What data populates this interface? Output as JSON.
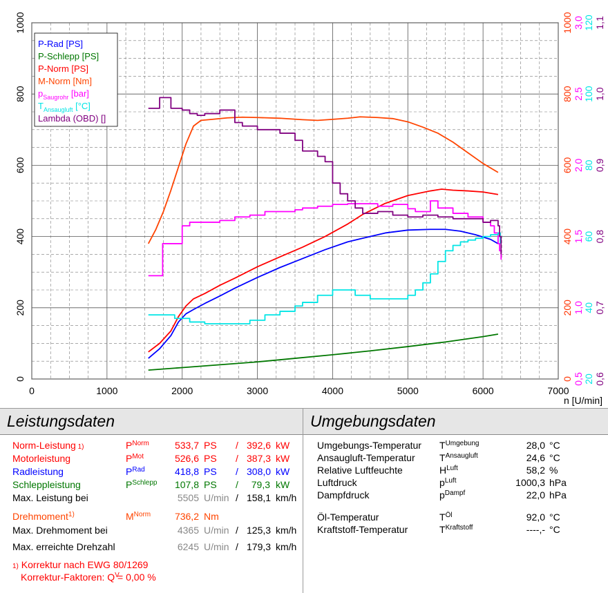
{
  "chart_data": {
    "type": "line",
    "xlabel": "n [U/min]",
    "xlim": [
      0,
      7000
    ],
    "x_ticks": [
      "0",
      "1000",
      "2000",
      "3000",
      "4000",
      "5000",
      "6000",
      "7000"
    ],
    "left_axis": {
      "ylim": [
        0,
        1000
      ],
      "ticks": [
        "0",
        "200",
        "400",
        "600",
        "800",
        "1000"
      ]
    },
    "right_axes": [
      {
        "color": "#ff3300",
        "ticks": [
          "0",
          "200",
          "400",
          "600",
          "800",
          "1000"
        ]
      },
      {
        "color": "#ff00ff",
        "ticks": [
          "0,5",
          "1,0",
          "1,5",
          "2,0",
          "2,5",
          "3,0"
        ]
      },
      {
        "color": "#00e5e5",
        "ticks": [
          "20",
          "40",
          "60",
          "80",
          "100",
          "120"
        ]
      },
      {
        "color": "#800080",
        "ticks": [
          "0,6",
          "0,7",
          "0,8",
          "0,9",
          "1,0",
          "1,1"
        ]
      }
    ],
    "grid": true,
    "legend_position": "top-left",
    "legend": [
      {
        "label": "P-Rad [PS]",
        "color": "#0000ff"
      },
      {
        "label": "P-Schlepp [PS]",
        "color": "#007700"
      },
      {
        "label": "P-Norm [PS]",
        "color": "#ff0000"
      },
      {
        "label": "M-Norm [Nm]",
        "color": "#ff4400"
      },
      {
        "label_main": "p",
        "label_sub": "Saugrohr",
        "label_tail": " [bar]",
        "color": "#ff00ff"
      },
      {
        "label_main": "T",
        "label_sub": "Ansaugluft",
        "label_tail": " [°C]",
        "color": "#00e5e5"
      },
      {
        "label": "Lambda (OBD) []",
        "color": "#800080"
      }
    ],
    "series": [
      {
        "key": "p_rad",
        "color": "#0000ff",
        "x": [
          1550,
          1700,
          1850,
          1950,
          2050,
          2150,
          2300,
          2500,
          2700,
          3000,
          3300,
          3600,
          3900,
          4200,
          4400,
          4700,
          5000,
          5300,
          5500,
          5700,
          5900,
          6100,
          6200
        ],
        "y": [
          58,
          85,
          122,
          160,
          183,
          195,
          212,
          233,
          255,
          285,
          313,
          338,
          363,
          385,
          395,
          410,
          418,
          420,
          420,
          415,
          405,
          392,
          380
        ]
      },
      {
        "key": "p_schlepp",
        "color": "#007700",
        "x": [
          1550,
          2000,
          2500,
          3000,
          3500,
          4000,
          4500,
          5000,
          5500,
          6000,
          6200
        ],
        "y": [
          25,
          32,
          40,
          48,
          58,
          68,
          79,
          91,
          104,
          119,
          126
        ]
      },
      {
        "key": "p_norm",
        "color": "#ff0000",
        "x": [
          1550,
          1700,
          1850,
          1950,
          2050,
          2150,
          2300,
          2500,
          2700,
          3000,
          3300,
          3600,
          3900,
          4200,
          4400,
          4700,
          5000,
          5300,
          5450,
          5600,
          5800,
          6000,
          6200
        ],
        "y": [
          76,
          100,
          135,
          175,
          205,
          225,
          240,
          263,
          283,
          315,
          343,
          370,
          400,
          435,
          462,
          493,
          515,
          528,
          533,
          530,
          528,
          525,
          518
        ]
      },
      {
        "key": "m_norm",
        "color": "#ff4400",
        "x": [
          1550,
          1650,
          1750,
          1850,
          1950,
          2050,
          2150,
          2250,
          2400,
          2600,
          2800,
          3000,
          3300,
          3600,
          3800,
          4000,
          4200,
          4365,
          4600,
          4800,
          5000,
          5200,
          5400,
          5600,
          5800,
          6000,
          6200
        ],
        "y": [
          380,
          420,
          470,
          530,
          595,
          660,
          710,
          726,
          729,
          733,
          735,
          734,
          732,
          728,
          726,
          729,
          732,
          736,
          734,
          731,
          722,
          707,
          690,
          665,
          635,
          605,
          580
        ]
      },
      {
        "key": "p_saugrohr",
        "color": "#ff00ff",
        "step": true,
        "x": [
          1550,
          1700,
          1740,
          2000,
          2100,
          2500,
          2700,
          2900,
          3100,
          3500,
          3600,
          3800,
          4000,
          4200,
          4600,
          4800,
          5000,
          5100,
          5300,
          5400,
          5600,
          5800,
          6000,
          6100,
          6150,
          6200,
          6220,
          6240
        ],
        "y": [
          290,
          290,
          380,
          430,
          440,
          445,
          455,
          460,
          470,
          475,
          480,
          485,
          490,
          492,
          485,
          490,
          478,
          470,
          500,
          480,
          465,
          455,
          440,
          430,
          410,
          380,
          360,
          335
        ]
      },
      {
        "key": "t_ansaug",
        "color": "#00e5e5",
        "step": true,
        "x": [
          1550,
          1700,
          1900,
          2100,
          2300,
          2700,
          2900,
          3100,
          3300,
          3500,
          3600,
          3800,
          4000,
          4200,
          4300,
          4500,
          4600,
          4800,
          5000,
          5100,
          5200,
          5300,
          5400,
          5500,
          5600,
          5700,
          5800,
          5900,
          6000,
          6100,
          6200,
          6230
        ],
        "y": [
          180,
          180,
          170,
          160,
          155,
          155,
          165,
          180,
          190,
          205,
          215,
          235,
          250,
          250,
          235,
          225,
          225,
          225,
          235,
          250,
          270,
          295,
          330,
          360,
          375,
          385,
          390,
          395,
          400,
          405,
          410,
          380
        ]
      },
      {
        "key": "lambda",
        "color": "#800080",
        "step": true,
        "x": [
          1550,
          1700,
          1850,
          2000,
          2100,
          2200,
          2300,
          2500,
          2700,
          2800,
          3000,
          3300,
          3500,
          3600,
          3800,
          3900,
          4000,
          4100,
          4200,
          4300,
          4400,
          4600,
          4800,
          5000,
          5200,
          5400,
          5600,
          5800,
          6000,
          6100,
          6200,
          6220,
          6240
        ],
        "y": [
          760,
          790,
          760,
          755,
          745,
          740,
          745,
          755,
          720,
          710,
          700,
          690,
          670,
          640,
          625,
          610,
          550,
          520,
          500,
          480,
          465,
          470,
          460,
          455,
          460,
          455,
          450,
          450,
          440,
          445,
          430,
          400,
          350
        ]
      }
    ]
  },
  "leistung": {
    "title": "Leistungsdaten",
    "rows": [
      {
        "label": "Norm-Leistung",
        "note": "1)",
        "sym": "P",
        "sub": "Norm",
        "v1": "533,7",
        "u1": "PS",
        "sep": "/",
        "v2": "392,6",
        "u2": "kW",
        "color": "#ff0000"
      },
      {
        "label": "Motorleistung",
        "sym": "P",
        "sub": "Mot",
        "v1": "526,6",
        "u1": "PS",
        "sep": "/",
        "v2": "387,3",
        "u2": "kW",
        "color": "#ff0000"
      },
      {
        "label": "Radleistung",
        "sym": "P",
        "sub": "Rad",
        "v1": "418,8",
        "u1": "PS",
        "sep": "/",
        "v2": "308,0",
        "u2": "kW",
        "color": "#0000ff"
      },
      {
        "label": "Schleppleistung",
        "sym": "P",
        "sub": "Schlepp",
        "v1": "107,8",
        "u1": "PS",
        "sep": "/",
        "v2": "79,3",
        "u2": "kW",
        "color": "#007700"
      },
      {
        "label": "Max. Leistung bei",
        "v1": "5505",
        "u1": "U/min",
        "sep": "/",
        "v2": "158,1",
        "u2": "km/h",
        "color": "#000000"
      }
    ],
    "torque": {
      "label": "Drehmoment",
      "note": "1)",
      "sym": "M",
      "sub": "Norm",
      "v1": "736,2",
      "u1": "Nm",
      "color": "#ff4400"
    },
    "rows2": [
      {
        "label": "Max. Drehmoment bei",
        "v1": "4365",
        "u1": "U/min",
        "sep": "/",
        "v2": "125,3",
        "u2": "km/h"
      },
      {
        "label": "Max. erreichte Drehzahl",
        "v1": "6245",
        "u1": "U/min",
        "sep": "/",
        "v2": "179,3",
        "u2": "km/h"
      }
    ],
    "footnote": {
      "note": "1)",
      "text": "Korrektur nach EWG 80/1269",
      "corr_label": "Korrektur-Faktoren: Q",
      "corr_sub": "V",
      "corr_val": "=   0,00 %"
    }
  },
  "umgebung": {
    "title": "Umgebungsdaten",
    "rows": [
      {
        "label": "Umgebungs-Temperatur",
        "sym": "T",
        "sub": "Umgebung",
        "val": "28,0",
        "unit": "°C"
      },
      {
        "label": "Ansaugluft-Temperatur",
        "sym": "T",
        "sub": "Ansaugluft",
        "val": "24,6",
        "unit": "°C"
      },
      {
        "label": "Relative Luftfeuchte",
        "sym": "H",
        "sub": "Luft",
        "val": "58,2",
        "unit": "%"
      },
      {
        "label": "Luftdruck",
        "sym": "p",
        "sub": "Luft",
        "val": "1000,3",
        "unit": "hPa"
      },
      {
        "label": "Dampfdruck",
        "sym": "p",
        "sub": "Dampf",
        "val": "22,0",
        "unit": "hPa"
      },
      {
        "label": "Öl-Temperatur",
        "sym": "T",
        "sub": "Öl",
        "val": "92,0",
        "unit": "°C"
      },
      {
        "label": "Kraftstoff-Temperatur",
        "sym": "T",
        "sub": "Kraftstoff",
        "val": "----,-",
        "unit": "°C"
      }
    ]
  }
}
